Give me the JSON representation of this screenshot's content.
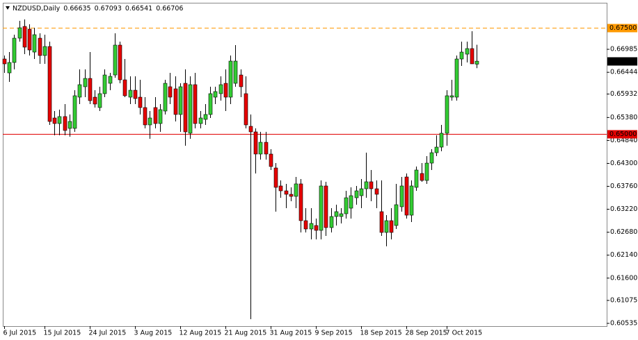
{
  "chart_data": {
    "type": "candlestick",
    "title": "NZDUSD,Daily",
    "categories": [
      "6 Jul 2015",
      null,
      null,
      null,
      null,
      null,
      null,
      null,
      "15 Jul 2015",
      null,
      null,
      null,
      null,
      null,
      null,
      null,
      null,
      "24 Jul 2015",
      null,
      null,
      null,
      null,
      null,
      null,
      null,
      null,
      "3 Aug 2015",
      null,
      null,
      null,
      null,
      null,
      null,
      null,
      null,
      "12 Aug 2015",
      null,
      null,
      null,
      null,
      null,
      null,
      null,
      null,
      "21 Aug 2015",
      null,
      null,
      null,
      null,
      null,
      null,
      null,
      null,
      "31 Aug 2015",
      null,
      null,
      null,
      null,
      null,
      null,
      null,
      null,
      "9 Sep 2015",
      null,
      null,
      null,
      null,
      null,
      null,
      null,
      null,
      "18 Sep 2015",
      null,
      null,
      null,
      null,
      null,
      null,
      null,
      null,
      "28 Sep 2015",
      null,
      null,
      null,
      null,
      null,
      null,
      null,
      "7 Oct 2015",
      null,
      null,
      null,
      null,
      null,
      null
    ],
    "open": [
      0.66757,
      0.6643,
      0.66675,
      0.67247,
      0.67524,
      0.67459,
      0.6692,
      0.67247,
      0.66839,
      0.67051,
      0.65369,
      0.65238,
      0.65402,
      0.65124,
      0.65124,
      0.65859,
      0.66104,
      0.663,
      0.65859,
      0.65614,
      0.65941,
      0.66185,
      0.66381,
      0.67084,
      0.66267,
      0.65859,
      0.66022,
      0.65859,
      0.65614,
      0.65206,
      0.65614,
      0.65238,
      0.65532,
      0.66104,
      0.66055,
      0.65451,
      0.66185,
      0.6501,
      0.66153,
      0.65238,
      0.65336,
      0.65451,
      0.65859,
      0.65941,
      0.66185,
      0.65859,
      0.66185,
      0.66381,
      0.65941,
      0.65173,
      0.65042,
      0.6452,
      0.64797,
      0.6452,
      0.64193,
      0.63769,
      0.63654,
      0.63573,
      0.63524,
      0.63818,
      0.62952,
      0.62756,
      0.62838,
      0.62724,
      0.63769,
      0.62789,
      0.6305,
      0.6305,
      0.63115,
      0.63246,
      0.63491,
      0.6354,
      0.63703,
      0.63867,
      0.63703,
      0.63164,
      0.62675,
      0.62952,
      0.62838,
      0.63279,
      0.63981,
      0.63082,
      0.63736,
      0.64063,
      0.63899,
      0.64307,
      0.64552,
      0.64683,
      0.6501,
      0.65859,
      0.65859,
      0.66757,
      0.66871,
      0.67002,
      0.66635
    ],
    "high": [
      0.66839,
      0.6692,
      0.67329,
      0.67655,
      0.67688,
      0.67573,
      0.67492,
      0.67361,
      0.67329,
      0.67165,
      0.65532,
      0.65565,
      0.65696,
      0.65451,
      0.66022,
      0.66512,
      0.66512,
      0.6692,
      0.66022,
      0.66104,
      0.66512,
      0.6643,
      0.67361,
      0.67165,
      0.66757,
      0.66349,
      0.66349,
      0.66267,
      0.65859,
      0.65532,
      0.65859,
      0.65696,
      0.66267,
      0.6643,
      0.66349,
      0.66185,
      0.66512,
      0.66349,
      0.6643,
      0.65532,
      0.65696,
      0.66104,
      0.66104,
      0.66349,
      0.66512,
      0.66839,
      0.67084,
      0.66512,
      0.66349,
      0.65451,
      0.65124,
      0.65042,
      0.65042,
      0.64634,
      0.64307,
      0.63899,
      0.63818,
      0.63736,
      0.63981,
      0.63932,
      0.63246,
      0.63246,
      0.63001,
      0.63899,
      0.63867,
      0.63246,
      0.63328,
      0.63246,
      0.63654,
      0.63736,
      0.63769,
      0.63932,
      0.64552,
      0.64144,
      0.63899,
      0.63899,
      0.63082,
      0.63246,
      0.63818,
      0.63981,
      0.64063,
      0.63899,
      0.64226,
      0.64307,
      0.64471,
      0.64634,
      0.64961,
      0.65206,
      0.66022,
      0.66267,
      0.66839,
      0.67165,
      0.67165,
      0.6741,
      0.67093
    ],
    "low": [
      0.6643,
      0.66218,
      0.66512,
      0.67165,
      0.66871,
      0.66839,
      0.66757,
      0.66643,
      0.66643,
      0.65206,
      0.64961,
      0.64961,
      0.64961,
      0.64928,
      0.65042,
      0.65696,
      0.65859,
      0.65696,
      0.65614,
      0.65532,
      0.65859,
      0.66022,
      0.66316,
      0.66185,
      0.65859,
      0.65696,
      0.65696,
      0.65451,
      0.65124,
      0.64879,
      0.65124,
      0.65042,
      0.65451,
      0.65696,
      0.65287,
      0.65042,
      0.64716,
      0.64879,
      0.65124,
      0.65124,
      0.65206,
      0.65369,
      0.65696,
      0.65777,
      0.65532,
      0.65696,
      0.66104,
      0.65859,
      0.65124,
      0.60633,
      0.64063,
      0.64389,
      0.64389,
      0.64144,
      0.63164,
      0.63491,
      0.63246,
      0.6341,
      0.63246,
      0.62675,
      0.62675,
      0.62511,
      0.62511,
      0.62511,
      0.62593,
      0.62675,
      0.62838,
      0.62887,
      0.63001,
      0.63001,
      0.63328,
      0.63246,
      0.63491,
      0.6341,
      0.63246,
      0.62593,
      0.62348,
      0.62511,
      0.62756,
      0.63164,
      0.63001,
      0.62919,
      0.63654,
      0.63867,
      0.63818,
      0.64144,
      0.64471,
      0.64585,
      0.64716,
      0.65777,
      0.65777,
      0.66594,
      0.66675,
      0.66675,
      0.66541
    ],
    "close": [
      0.66643,
      0.66675,
      0.67247,
      0.67492,
      0.67035,
      0.66969,
      0.67329,
      0.66839,
      0.67051,
      0.65287,
      0.65238,
      0.65402,
      0.65075,
      0.65287,
      0.65892,
      0.66153,
      0.663,
      0.65777,
      0.65696,
      0.65941,
      0.66381,
      0.66349,
      0.67084,
      0.66267,
      0.65892,
      0.66022,
      0.65826,
      0.65614,
      0.65206,
      0.65369,
      0.65238,
      0.65565,
      0.66185,
      0.65859,
      0.65451,
      0.66104,
      0.65042,
      0.66153,
      0.65238,
      0.65369,
      0.65451,
      0.65941,
      0.6599,
      0.66153,
      0.65859,
      0.66708,
      0.66708,
      0.66104,
      0.65206,
      0.65042,
      0.6452,
      0.64797,
      0.6452,
      0.64226,
      0.63736,
      0.63654,
      0.63573,
      0.63524,
      0.63818,
      0.62952,
      0.62756,
      0.62887,
      0.62724,
      0.63769,
      0.62789,
      0.6305,
      0.63164,
      0.63115,
      0.63491,
      0.6354,
      0.63654,
      0.63703,
      0.63867,
      0.63703,
      0.63573,
      0.62675,
      0.62952,
      0.62675,
      0.63328,
      0.63769,
      0.63082,
      0.63769,
      0.64144,
      0.63899,
      0.64307,
      0.64552,
      0.64683,
      0.6501,
      0.65892,
      0.65892,
      0.66757,
      0.6692,
      0.67002,
      0.66643,
      0.66706
    ],
    "up_color": "#33cc33",
    "down_color": "#e60000",
    "wick_color": "#000000",
    "ylim": [
      0.6047,
      0.6808
    ],
    "yticks": [
      0.66985,
      0.66444,
      0.65932,
      {
        "value": 0.6538,
        "label": "0.65380"
      },
      {
        "value": 0.6484,
        "label": "0.64840"
      },
      {
        "value": 0.643,
        "label": "0.64300"
      },
      {
        "value": 0.6376,
        "label": "0.63760"
      },
      {
        "value": 0.6322,
        "label": "0.63220"
      },
      {
        "value": 0.6268,
        "label": "0.62680"
      },
      {
        "value": 0.6214,
        "label": "0.62140"
      },
      {
        "value": 0.616,
        "label": "0.61600"
      },
      0.61075,
      0.60535
    ],
    "hlines": [
      {
        "value": 0.675,
        "label": "0.67500",
        "color": "#ff9900",
        "text_color": "#000000",
        "dashed": true
      },
      {
        "value": 0.65,
        "label": "0.65000",
        "color": "#e00000",
        "text_color": "#ffffff",
        "dashed": false
      }
    ]
  }
}
